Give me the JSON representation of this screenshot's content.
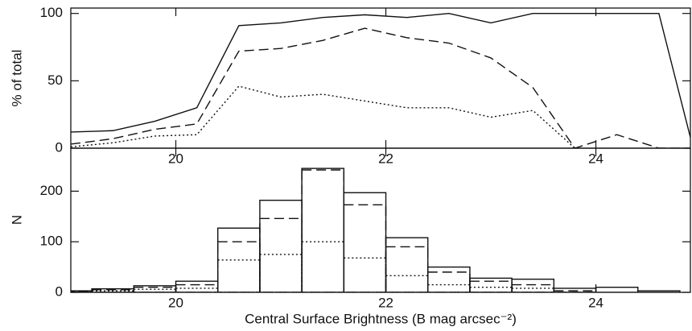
{
  "chart_data": [
    {
      "type": "line",
      "ylabel": "% of total",
      "x": [
        19.0,
        19.4,
        19.8,
        20.2,
        20.6,
        21.0,
        21.4,
        21.8,
        22.2,
        22.6,
        23.0,
        23.4,
        23.8,
        24.2,
        24.6,
        24.9
      ],
      "series": [
        {
          "style": "solid",
          "color": "#111111",
          "values": [
            12,
            13,
            20,
            30,
            91,
            93,
            97,
            99,
            97,
            100,
            93,
            100,
            100,
            100,
            100,
            8
          ]
        },
        {
          "style": "dashed",
          "color": "#111111",
          "values": [
            3,
            7,
            14,
            18,
            72,
            74,
            80,
            89,
            82,
            78,
            67,
            45,
            0,
            10,
            0,
            0
          ]
        },
        {
          "style": "dotted",
          "color": "#111111",
          "values": [
            1,
            4,
            9,
            10,
            46,
            38,
            40,
            35,
            30,
            30,
            23,
            28,
            0,
            null,
            null,
            null
          ]
        }
      ],
      "xlim": [
        19,
        24.9
      ],
      "xticks": [
        20,
        22,
        24
      ],
      "ylim": [
        0,
        104
      ],
      "yticks": [
        0,
        50,
        100
      ]
    },
    {
      "type": "histogram",
      "ylabel": "N",
      "xlabel": "Central Surface Brightness (B mag arcsec⁻²)",
      "bins": [
        18.8,
        19.2,
        19.6,
        20.0,
        20.4,
        20.8,
        21.2,
        21.6,
        22.0,
        22.4,
        22.8,
        23.2,
        23.6,
        24.0,
        24.4,
        24.8
      ],
      "series": [
        {
          "style": "solid",
          "color": "#111111",
          "values": [
            3,
            7,
            13,
            22,
            127,
            182,
            245,
            197,
            108,
            50,
            28,
            26,
            8,
            10,
            3
          ]
        },
        {
          "style": "dashed",
          "color": "#111111",
          "values": [
            2,
            5,
            10,
            15,
            100,
            146,
            242,
            173,
            90,
            40,
            22,
            15,
            3,
            0,
            0
          ]
        },
        {
          "style": "dotted",
          "color": "#111111",
          "values": [
            1,
            3,
            6,
            8,
            64,
            75,
            100,
            68,
            33,
            15,
            10,
            8,
            0,
            0,
            0
          ]
        }
      ],
      "xlim": [
        19,
        24.9
      ],
      "xticks": [
        20,
        22,
        24
      ],
      "ylim": [
        0,
        285
      ],
      "yticks": [
        0,
        100,
        200
      ]
    }
  ]
}
